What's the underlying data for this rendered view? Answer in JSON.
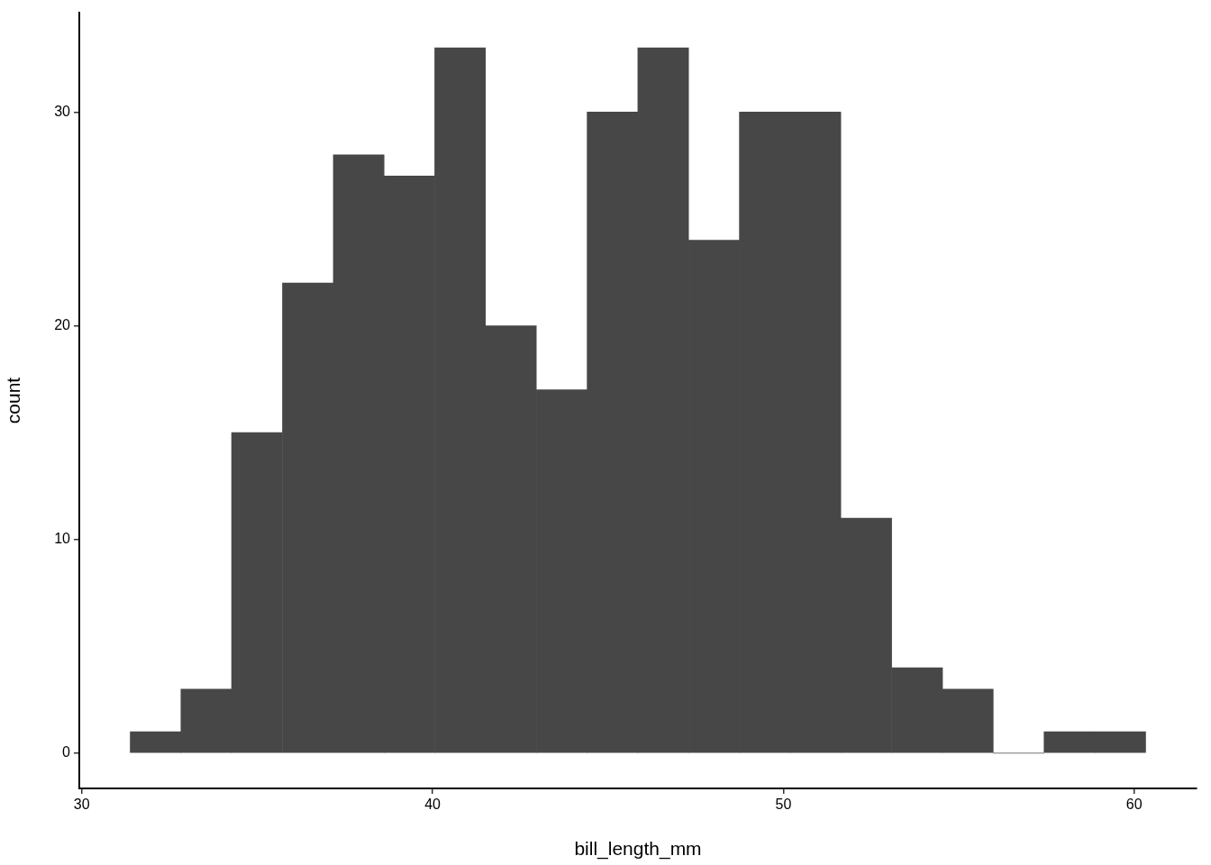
{
  "chart_data": {
    "type": "histogram",
    "xlabel": "bill_length_mm",
    "ylabel": "count",
    "bins": [
      31.38,
      32.83,
      34.27,
      35.72,
      37.17,
      38.62,
      40.06,
      41.51,
      42.96,
      44.41,
      45.85,
      47.3,
      48.75,
      50.19,
      51.64,
      53.09,
      54.54,
      55.98,
      57.43,
      58.88,
      60.33
    ],
    "values": [
      1,
      3,
      15,
      22,
      28,
      27,
      33,
      20,
      17,
      30,
      33,
      24,
      30,
      30,
      11,
      4,
      3,
      0,
      1,
      1
    ],
    "color": "#474747",
    "xlim": [
      29.93,
      61.78
    ],
    "ylim": [
      -1.65,
      34.65
    ],
    "xticks": [
      30,
      40,
      50,
      60
    ],
    "yticks": [
      0,
      10,
      20,
      30
    ],
    "grid": false,
    "legend": false
  }
}
